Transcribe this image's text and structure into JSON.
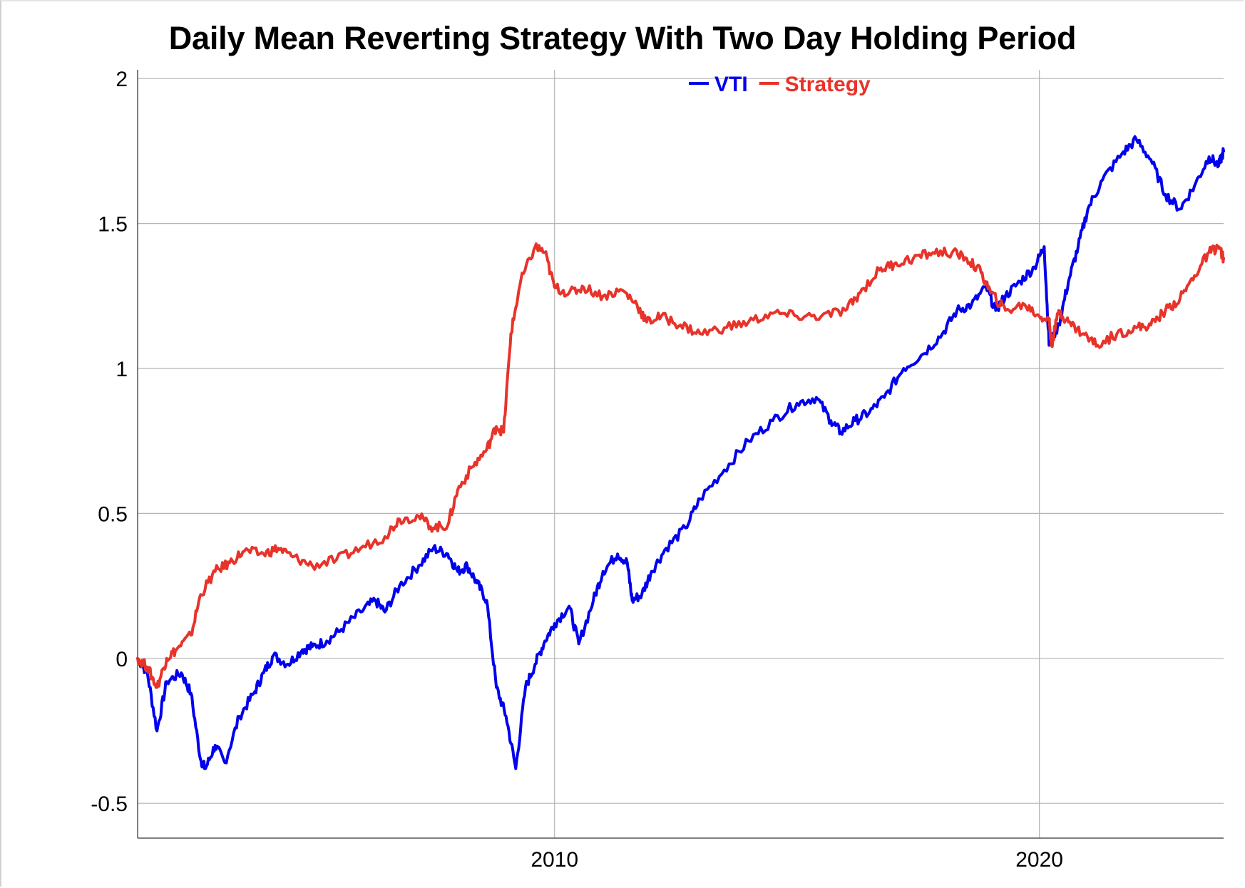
{
  "chart_data": {
    "type": "line",
    "title": "Daily Mean Reverting Strategy With Two Day Holding Period",
    "xlabel": "",
    "ylabel": "",
    "x_ticks": [
      "2010",
      "2020"
    ],
    "y_ticks": [
      "-0.5",
      "0",
      "0.5",
      "1",
      "1.5",
      "2"
    ],
    "xlim": [
      2001.4,
      2023.8
    ],
    "ylim": [
      -0.62,
      2.03
    ],
    "grid": true,
    "legend_position": "top-center",
    "series": [
      {
        "name": "VTI",
        "color": "#0000ee",
        "points": [
          [
            2001.4,
            0.0
          ],
          [
            2001.6,
            -0.05
          ],
          [
            2001.8,
            -0.25
          ],
          [
            2002.0,
            -0.08
          ],
          [
            2002.3,
            -0.05
          ],
          [
            2002.5,
            -0.12
          ],
          [
            2002.7,
            -0.35
          ],
          [
            2002.8,
            -0.38
          ],
          [
            2003.0,
            -0.3
          ],
          [
            2003.2,
            -0.36
          ],
          [
            2003.5,
            -0.2
          ],
          [
            2003.8,
            -0.12
          ],
          [
            2004.0,
            -0.05
          ],
          [
            2004.2,
            0.01
          ],
          [
            2004.5,
            -0.02
          ],
          [
            2004.8,
            0.03
          ],
          [
            2005.0,
            0.04
          ],
          [
            2005.3,
            0.06
          ],
          [
            2005.6,
            0.1
          ],
          [
            2006.0,
            0.16
          ],
          [
            2006.3,
            0.2
          ],
          [
            2006.5,
            0.16
          ],
          [
            2006.8,
            0.25
          ],
          [
            2007.2,
            0.32
          ],
          [
            2007.5,
            0.38
          ],
          [
            2007.8,
            0.36
          ],
          [
            2008.0,
            0.3
          ],
          [
            2008.2,
            0.32
          ],
          [
            2008.4,
            0.26
          ],
          [
            2008.6,
            0.2
          ],
          [
            2008.8,
            -0.1
          ],
          [
            2009.0,
            -0.2
          ],
          [
            2009.2,
            -0.38
          ],
          [
            2009.4,
            -0.1
          ],
          [
            2009.6,
            -0.02
          ],
          [
            2009.8,
            0.06
          ],
          [
            2010.0,
            0.12
          ],
          [
            2010.3,
            0.18
          ],
          [
            2010.5,
            0.05
          ],
          [
            2010.8,
            0.2
          ],
          [
            2011.0,
            0.3
          ],
          [
            2011.3,
            0.36
          ],
          [
            2011.5,
            0.33
          ],
          [
            2011.6,
            0.2
          ],
          [
            2011.8,
            0.22
          ],
          [
            2012.0,
            0.3
          ],
          [
            2012.3,
            0.38
          ],
          [
            2012.7,
            0.45
          ],
          [
            2013.0,
            0.55
          ],
          [
            2013.5,
            0.65
          ],
          [
            2014.0,
            0.75
          ],
          [
            2014.5,
            0.82
          ],
          [
            2015.0,
            0.88
          ],
          [
            2015.4,
            0.9
          ],
          [
            2015.7,
            0.82
          ],
          [
            2015.9,
            0.78
          ],
          [
            2016.2,
            0.82
          ],
          [
            2016.5,
            0.85
          ],
          [
            2016.8,
            0.9
          ],
          [
            2017.2,
            1.0
          ],
          [
            2017.6,
            1.05
          ],
          [
            2018.0,
            1.12
          ],
          [
            2018.3,
            1.2
          ],
          [
            2018.6,
            1.22
          ],
          [
            2018.9,
            1.28
          ],
          [
            2019.1,
            1.2
          ],
          [
            2019.3,
            1.25
          ],
          [
            2019.6,
            1.3
          ],
          [
            2019.9,
            1.35
          ],
          [
            2020.1,
            1.42
          ],
          [
            2020.2,
            1.08
          ],
          [
            2020.4,
            1.15
          ],
          [
            2020.6,
            1.3
          ],
          [
            2020.8,
            1.42
          ],
          [
            2021.0,
            1.55
          ],
          [
            2021.3,
            1.65
          ],
          [
            2021.7,
            1.74
          ],
          [
            2022.0,
            1.79
          ],
          [
            2022.3,
            1.72
          ],
          [
            2022.6,
            1.6
          ],
          [
            2022.9,
            1.55
          ],
          [
            2023.2,
            1.63
          ],
          [
            2023.5,
            1.73
          ],
          [
            2023.7,
            1.7
          ],
          [
            2023.8,
            1.75
          ]
        ]
      },
      {
        "name": "Strategy",
        "color": "#e8332a",
        "points": [
          [
            2001.4,
            0.0
          ],
          [
            2001.6,
            -0.03
          ],
          [
            2001.8,
            -0.1
          ],
          [
            2002.0,
            0.0
          ],
          [
            2002.2,
            0.03
          ],
          [
            2002.5,
            0.08
          ],
          [
            2002.7,
            0.22
          ],
          [
            2003.0,
            0.3
          ],
          [
            2003.3,
            0.33
          ],
          [
            2003.6,
            0.37
          ],
          [
            2004.0,
            0.36
          ],
          [
            2004.3,
            0.38
          ],
          [
            2004.6,
            0.35
          ],
          [
            2005.0,
            0.32
          ],
          [
            2005.5,
            0.34
          ],
          [
            2006.0,
            0.38
          ],
          [
            2006.5,
            0.42
          ],
          [
            2006.8,
            0.48
          ],
          [
            2007.2,
            0.49
          ],
          [
            2007.5,
            0.45
          ],
          [
            2007.8,
            0.46
          ],
          [
            2008.0,
            0.58
          ],
          [
            2008.3,
            0.66
          ],
          [
            2008.6,
            0.72
          ],
          [
            2008.8,
            0.8
          ],
          [
            2008.95,
            0.78
          ],
          [
            2009.1,
            1.12
          ],
          [
            2009.3,
            1.3
          ],
          [
            2009.6,
            1.42
          ],
          [
            2009.8,
            1.4
          ],
          [
            2010.0,
            1.28
          ],
          [
            2010.3,
            1.26
          ],
          [
            2010.6,
            1.28
          ],
          [
            2011.0,
            1.25
          ],
          [
            2011.4,
            1.27
          ],
          [
            2011.7,
            1.22
          ],
          [
            2011.9,
            1.16
          ],
          [
            2012.2,
            1.18
          ],
          [
            2012.6,
            1.15
          ],
          [
            2013.0,
            1.12
          ],
          [
            2013.5,
            1.14
          ],
          [
            2014.0,
            1.16
          ],
          [
            2014.5,
            1.19
          ],
          [
            2015.0,
            1.18
          ],
          [
            2015.5,
            1.18
          ],
          [
            2016.0,
            1.2
          ],
          [
            2016.3,
            1.26
          ],
          [
            2016.7,
            1.34
          ],
          [
            2017.0,
            1.36
          ],
          [
            2017.4,
            1.38
          ],
          [
            2017.8,
            1.4
          ],
          [
            2018.2,
            1.4
          ],
          [
            2018.5,
            1.38
          ],
          [
            2018.8,
            1.33
          ],
          [
            2019.0,
            1.26
          ],
          [
            2019.3,
            1.2
          ],
          [
            2019.7,
            1.22
          ],
          [
            2020.0,
            1.18
          ],
          [
            2020.2,
            1.17
          ],
          [
            2020.25,
            1.08
          ],
          [
            2020.4,
            1.2
          ],
          [
            2020.6,
            1.16
          ],
          [
            2020.9,
            1.12
          ],
          [
            2021.2,
            1.08
          ],
          [
            2021.6,
            1.12
          ],
          [
            2022.0,
            1.14
          ],
          [
            2022.3,
            1.15
          ],
          [
            2022.6,
            1.2
          ],
          [
            2022.9,
            1.24
          ],
          [
            2023.2,
            1.32
          ],
          [
            2023.5,
            1.4
          ],
          [
            2023.7,
            1.42
          ],
          [
            2023.8,
            1.38
          ]
        ]
      }
    ]
  }
}
